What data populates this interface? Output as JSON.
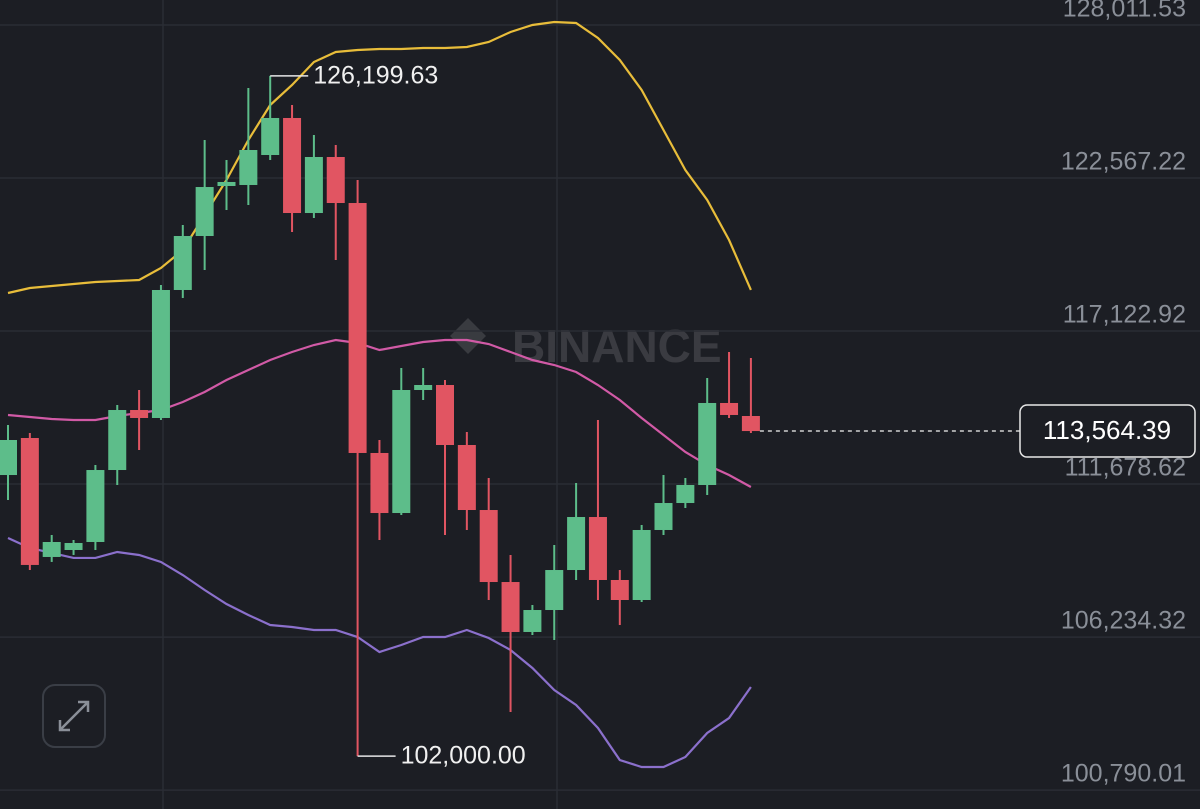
{
  "chart_data": {
    "type": "candlestick",
    "watermark": "BINANCE",
    "ylim": [
      100117,
      128901
    ],
    "yticks": [
      {
        "value": 128011.53,
        "label": "128,011.53"
      },
      {
        "value": 122567.22,
        "label": "122,567.22"
      },
      {
        "value": 117122.92,
        "label": "117,122.92"
      },
      {
        "value": 111678.62,
        "label": "111,678.62"
      },
      {
        "value": 106234.32,
        "label": "106,234.32"
      },
      {
        "value": 100790.01,
        "label": "100,790.01"
      }
    ],
    "grid": true,
    "up_color": "#5dbd8a",
    "down_color": "#e15562",
    "open": [
      112000,
      113317,
      109084,
      109332,
      109617,
      112178,
      114313,
      114029,
      118583,
      120504,
      122283,
      122319,
      123386,
      124703,
      121322,
      123315,
      121678,
      112784,
      110648,
      115025,
      115203,
      113068,
      110755,
      108193,
      106415,
      107197,
      108620,
      110506,
      108265,
      107553,
      110044,
      111004,
      111645,
      114563,
      114100
    ],
    "high": [
      113780,
      113495,
      109866,
      109688,
      112356,
      114491,
      115025,
      118761,
      120895,
      123920,
      123208,
      125770,
      126199.63,
      125165,
      124098,
      123742,
      122497,
      113246,
      115807,
      115807,
      115381,
      113530,
      111894,
      109155,
      107375,
      109510,
      111716,
      113957,
      108620,
      110222,
      112000,
      111894,
      115452,
      116377,
      116163
    ],
    "low": [
      111111,
      108620,
      108907,
      109155,
      109332,
      111645,
      112890,
      113957,
      118298,
      119295,
      121429,
      121607,
      123208,
      120646,
      121144,
      119650,
      102000,
      109688,
      110577,
      114669,
      109866,
      110044,
      107553,
      103568,
      106308,
      106130,
      108265,
      107553,
      106663,
      107482,
      109866,
      110826,
      111289,
      114029,
      113495
    ],
    "close": [
      113246,
      108800,
      109617,
      109581,
      112178,
      114313,
      114029,
      118583,
      120504,
      122247,
      122426,
      123564,
      124703,
      121322,
      123315,
      121678,
      112784,
      110648,
      115025,
      115203,
      113068,
      110755,
      108193,
      106415,
      107197,
      108620,
      110506,
      108265,
      107553,
      110044,
      111004,
      111645,
      114563,
      114136,
      113564.39
    ],
    "series": [
      {
        "color": "#e8bd3a",
        "values": [
          118476,
          118654,
          118725,
          118797,
          118868,
          118903,
          118939,
          119366,
          120006,
          121251,
          122497,
          123920,
          125165,
          125877,
          126695,
          127051,
          127122,
          127158,
          127158,
          127193,
          127193,
          127229,
          127407,
          127762,
          128012,
          128118,
          128083,
          127549,
          126766,
          125699,
          124276,
          122852,
          121785,
          120361,
          118583
        ]
      },
      {
        "color": "#d15aa6",
        "values": [
          114136,
          114065,
          113993,
          113957,
          113957,
          114100,
          114206,
          114313,
          114598,
          114954,
          115381,
          115736,
          116092,
          116377,
          116626,
          116804,
          116697,
          116448,
          116590,
          116733,
          116804,
          116804,
          116661,
          116377,
          116092,
          115914,
          115665,
          115203,
          114669,
          114029,
          113424,
          112819,
          112356,
          112000,
          111574
        ]
      },
      {
        "color": "#8b70cc",
        "values": [
          109760,
          109403,
          109226,
          109049,
          109049,
          109261,
          109155,
          108907,
          108442,
          107909,
          107411,
          107019,
          106663,
          106592,
          106486,
          106486,
          106236,
          105703,
          105952,
          106236,
          106236,
          106486,
          106201,
          105774,
          105134,
          104351,
          103817,
          102999,
          101860,
          101611,
          101611,
          101967,
          102821,
          103354,
          104458
        ]
      }
    ],
    "high_label": "126,199.63",
    "low_label": "102,000.00",
    "last_price_label": "113,564.39"
  }
}
